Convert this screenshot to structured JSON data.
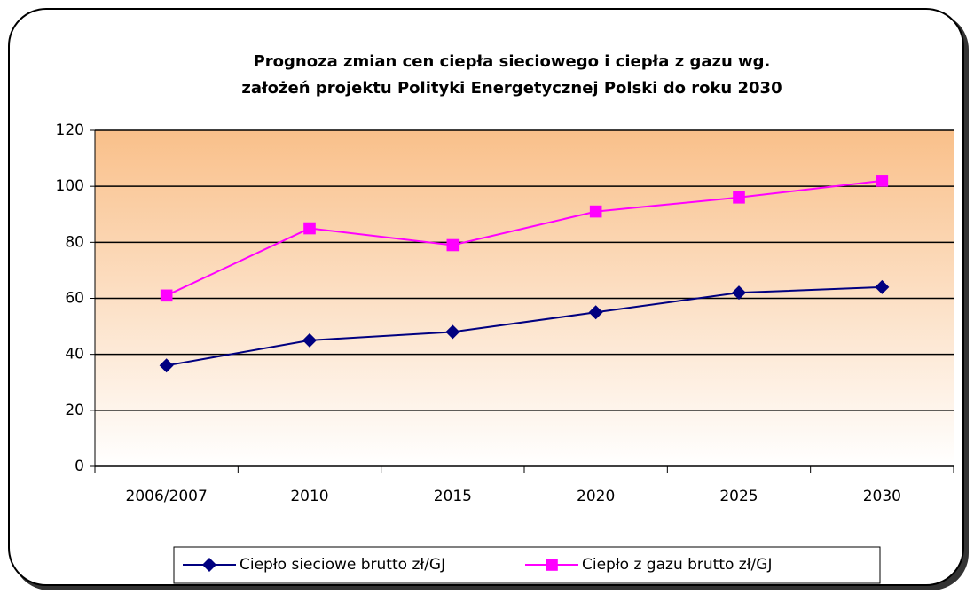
{
  "chart_data": {
    "type": "line",
    "title": [
      "Prognoza zmian cen ciepła sieciowego i ciepła z gazu wg.",
      "założeń projektu Polityki Energetycznej Polski do roku 2030"
    ],
    "categories": [
      "2006/2007",
      "2010",
      "2015",
      "2020",
      "2025",
      "2030"
    ],
    "series": [
      {
        "name": "Ciepło sieciowe brutto zł/GJ",
        "color": "#000080",
        "marker": "diamond",
        "values": [
          36,
          45,
          48,
          55,
          62,
          64
        ]
      },
      {
        "name": "Ciepło z gazu brutto zł/GJ",
        "color": "#ff00ff",
        "marker": "square",
        "values": [
          61,
          85,
          79,
          91,
          96,
          102
        ]
      }
    ],
    "ylim": [
      0,
      120
    ],
    "yticks": [
      0,
      20,
      40,
      60,
      80,
      100,
      120
    ],
    "grid": true,
    "legend": "bottom"
  }
}
